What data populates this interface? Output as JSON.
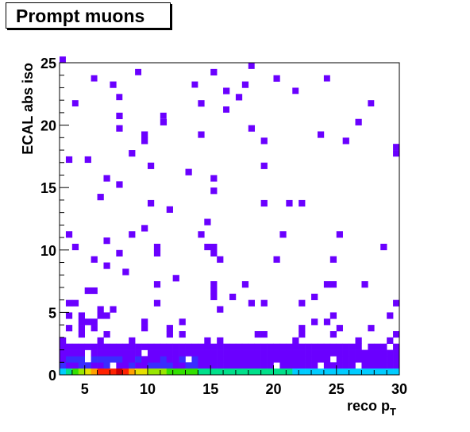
{
  "chart_data": {
    "type": "heatmap",
    "title": "Prompt muons",
    "xlabel": "reco p",
    "xlabel_subscript": "T",
    "ylabel": "ECAL abs iso",
    "xlim": [
      3,
      30
    ],
    "ylim": [
      0,
      25
    ],
    "bin_width_x": 0.5,
    "bin_width_y": 0.5,
    "x_ticks": [
      5,
      10,
      15,
      20,
      25,
      30
    ],
    "y_ticks": [
      0,
      5,
      10,
      15,
      20,
      25
    ],
    "grid": false,
    "legend": "none",
    "colors": {
      "low_count": "#6a00ff",
      "mid_low": "#3a2cff",
      "base_palette": [
        "#00ccff",
        "#00e08a",
        "#33e000",
        "#99e600",
        "#e6e000",
        "#ffa000",
        "#ff2200",
        "#cc0000"
      ],
      "axis": "#000000"
    },
    "first_row_iso_0": {
      "x": [
        3.25,
        3.75,
        4.25,
        4.75,
        5.25,
        5.75,
        6.25,
        6.75,
        7.25,
        7.75,
        8.25,
        8.75,
        9.25,
        9.75,
        10.25,
        10.75,
        11.25,
        11.75,
        12.25,
        12.75,
        13.25,
        13.75,
        14.25,
        14.75,
        15.25,
        15.75,
        16.25,
        16.75,
        17.25,
        17.75,
        18.25,
        18.75,
        19.25,
        19.75,
        20.25,
        20.75,
        21.25,
        21.75,
        22.25,
        22.75,
        23.25,
        23.75,
        24.25,
        24.75,
        25.25,
        25.75,
        26.25,
        26.75,
        27.25,
        27.75,
        28.25,
        28.75,
        29.25,
        29.75
      ],
      "level": [
        1,
        2,
        3,
        4,
        5,
        6,
        7,
        7,
        7,
        8,
        7,
        6,
        5,
        5,
        4,
        4,
        4,
        3,
        3,
        3,
        3,
        3,
        2,
        2,
        2,
        2,
        2,
        2,
        2,
        2,
        2,
        2,
        2,
        2,
        2,
        2,
        2,
        1,
        1,
        1,
        1,
        1,
        1,
        1,
        1,
        1,
        1,
        1,
        1,
        1,
        1,
        1,
        1,
        1
      ]
    },
    "density_note": "dense filled region for iso below about 3, sparse single-bin entries elsewhere",
    "sparse_bins_sample": [
      {
        "x": 3.25,
        "y": 25.25
      },
      {
        "x": 4.25,
        "y": 21.75
      },
      {
        "x": 5.75,
        "y": 23.75
      },
      {
        "x": 7.75,
        "y": 22.25
      },
      {
        "x": 9.25,
        "y": 24.25
      },
      {
        "x": 11.25,
        "y": 20.75
      },
      {
        "x": 13.75,
        "y": 23.25
      },
      {
        "x": 16.25,
        "y": 21.25
      },
      {
        "x": 18.25,
        "y": 24.75
      },
      {
        "x": 21.75,
        "y": 22.75
      },
      {
        "x": 24.25,
        "y": 23.75
      },
      {
        "x": 27.75,
        "y": 21.75
      },
      {
        "x": 29.75,
        "y": 18.25
      }
    ]
  }
}
